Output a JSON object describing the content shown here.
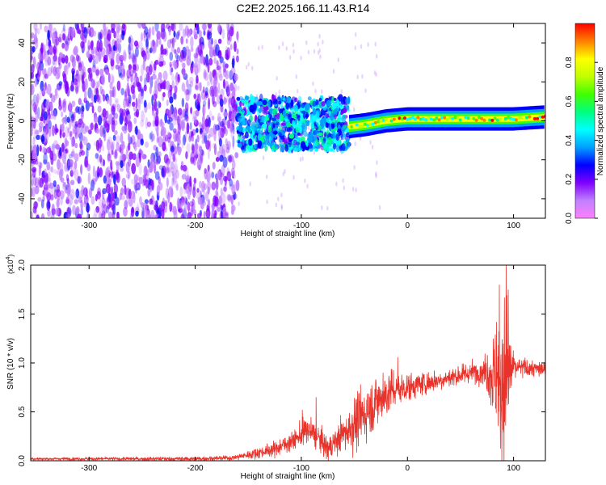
{
  "title": "C2E2.2025.166.11.43.R14",
  "chart_data": [
    {
      "type": "heatmap",
      "xlabel": "Height of straight line (km)",
      "ylabel": "Frequency (Hz)",
      "xlim": [
        -355,
        130
      ],
      "ylim": [
        -50,
        50
      ],
      "xticks": [
        -300,
        -200,
        -100,
        0,
        100
      ],
      "yticks": [
        -40,
        -20,
        0,
        20,
        40
      ],
      "colorbar": {
        "label": "Normalized spectral amplitude",
        "range": [
          0,
          1
        ],
        "ticks": [
          "0.0",
          "0.2",
          "0.4",
          "0.6",
          "0.8"
        ],
        "colors": [
          "#ff80ff",
          "#c080ff",
          "#8000ff",
          "#0000ff",
          "#00a0ff",
          "#00ffff",
          "#00ff80",
          "#40ff00",
          "#c0ff00",
          "#ffff00",
          "#ff8000",
          "#ff0000"
        ]
      },
      "regions": [
        {
          "name": "broadband noise",
          "x": [
            -355,
            -160
          ],
          "freq": [
            -50,
            50
          ],
          "amplitude": [
            0.05,
            0.25
          ]
        },
        {
          "name": "transition",
          "x": [
            -160,
            -55
          ],
          "freq": [
            -15,
            12
          ],
          "amplitude": [
            0.2,
            0.55
          ]
        },
        {
          "name": "narrowband signal",
          "x": [
            -55,
            130
          ],
          "freq": [
            -3,
            3
          ],
          "amplitude": [
            0.4,
            1.0
          ]
        }
      ],
      "ridge": {
        "x": [
          -55,
          -40,
          -20,
          0,
          40,
          80,
          100,
          130
        ],
        "freq": [
          -3,
          -2,
          0,
          1,
          1,
          1,
          1,
          2
        ]
      }
    },
    {
      "type": "line",
      "xlabel": "Height of straight line (km)",
      "ylabel": "SNR (10 * v/v)",
      "y_multiplier": "(x10",
      "y_multiplier_exp": "4",
      "xlim": [
        -355,
        130
      ],
      "ylim": [
        0,
        2.0
      ],
      "xticks": [
        -300,
        -200,
        -100,
        0,
        100
      ],
      "yticks": [
        "0.0",
        "0.5",
        "1.0",
        "1.5",
        "2.0"
      ],
      "color": "#e8322a",
      "trend": {
        "x": [
          -355,
          -200,
          -165,
          -150,
          -125,
          -105,
          -95,
          -85,
          -75,
          -60,
          -50,
          -30,
          -15,
          0,
          20,
          40,
          60,
          75,
          82,
          88,
          92,
          96,
          100,
          110,
          120,
          130
        ],
        "y": [
          0.02,
          0.02,
          0.03,
          0.06,
          0.12,
          0.22,
          0.32,
          0.25,
          0.12,
          0.28,
          0.38,
          0.6,
          0.72,
          0.75,
          0.8,
          0.85,
          0.9,
          0.92,
          0.85,
          0.8,
          0.9,
          0.92,
          0.95,
          0.95,
          0.94,
          0.93
        ]
      },
      "spread": {
        "x": [
          -355,
          -165,
          -110,
          -95,
          -70,
          -55,
          -40,
          -20,
          0,
          40,
          70,
          80,
          85,
          90,
          95,
          100,
          130
        ],
        "y": [
          0.01,
          0.02,
          0.08,
          0.12,
          0.1,
          0.2,
          0.25,
          0.2,
          0.12,
          0.08,
          0.1,
          0.3,
          0.55,
          0.9,
          0.6,
          0.1,
          0.06
        ]
      },
      "peaks": [
        {
          "x": -99,
          "y": 0.52
        },
        {
          "x": -86,
          "y": 0.65
        },
        {
          "x": -23,
          "y": 0.9
        },
        {
          "x": -9,
          "y": 1.06
        },
        {
          "x": 84,
          "y": 1.42
        },
        {
          "x": 93,
          "y": 2.0
        },
        {
          "x": 95,
          "y": 1.75
        }
      ]
    }
  ]
}
